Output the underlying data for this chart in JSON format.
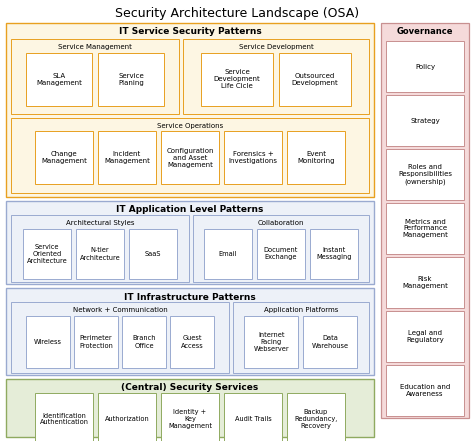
{
  "title": "Security Architecture Landscape (OSA)",
  "title_fontsize": 9,
  "section1_bg": "#FDF6E3",
  "section1_border": "#E8A020",
  "section1_title": "IT Service Security Patterns",
  "section2_bg": "#EDF1F8",
  "section2_border": "#9AAAD0",
  "section2_title": "IT Application Level Patterns",
  "section3_bg": "#EDF1F8",
  "section3_border": "#9AAAD0",
  "section3_title": "IT Infrastructure Patterns",
  "section4_bg": "#E5EDD8",
  "section4_border": "#8FAA60",
  "section4_title": "(Central) Security Services",
  "governance_bg": "#F5DADA",
  "governance_border": "#C89090",
  "governance_title": "Governance",
  "governance_items": [
    "Policy",
    "Strategy",
    "Roles and\nResponsibilities\n(ownership)",
    "Metrics and\nPerformance\nManagement",
    "Risk\nManagement",
    "Legal and\nRegulatory",
    "Education and\nAwareness"
  ],
  "orange_box_border": "#E8A020",
  "blue_box_border": "#9AAAD0",
  "green_box_border": "#8FAA60",
  "svc_mgmt_boxes": [
    "SLA\nManagement",
    "Service\nPlaning"
  ],
  "svc_dev_boxes": [
    "Service\nDevelopment\nLife Cicle",
    "Outsourced\nDevelopment"
  ],
  "svc_ops_boxes": [
    "Change\nManagement",
    "Incident\nManagement",
    "Configuration\nand Asset\nManagement",
    "Forensics +\nInvestigations",
    "Event\nMonitoring"
  ],
  "app_arch_boxes": [
    "Service\nOriented\nArchitecture",
    "N-tier\nArchitecture",
    "SaaS"
  ],
  "app_collab_boxes": [
    "Email",
    "Document\nExchange",
    "Instant\nMessaging"
  ],
  "infra_net_boxes": [
    "Wireless",
    "Perimeter\nProtection",
    "Branch\nOffice",
    "Guest\nAccess"
  ],
  "infra_app_boxes": [
    "Internet\nFacing\nWebserver",
    "Data\nWarehouse"
  ],
  "security_boxes": [
    "Identification\nAuthentication",
    "Authorization",
    "Identity +\nKey\nManagement",
    "Audit Trails",
    "Backup\nRedundancy,\nRecovery"
  ]
}
